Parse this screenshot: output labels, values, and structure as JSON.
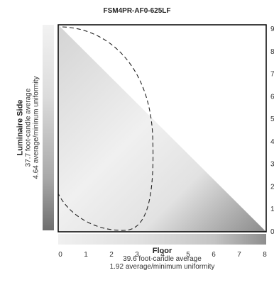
{
  "title": "FSM4PR-AF0-625LF",
  "side_label": {
    "heading": "Luminaire Side",
    "line1": "37.7 foot-candle average",
    "line2": "4.64 average/mininum uniformity"
  },
  "floor_label": {
    "heading": "Floor",
    "line1": "39.6 foot-candle average",
    "line2": "1.92 average/minimum uniformity"
  },
  "x_ticks": [
    "0",
    "1",
    "2",
    "3",
    "4",
    "5",
    "6",
    "7",
    "8"
  ],
  "y_ticks": [
    "0",
    "1",
    "2",
    "3",
    "4",
    "5",
    "6",
    "7",
    "8",
    "9"
  ],
  "colors": {
    "frame": "#000000",
    "contour": "#222222"
  }
}
